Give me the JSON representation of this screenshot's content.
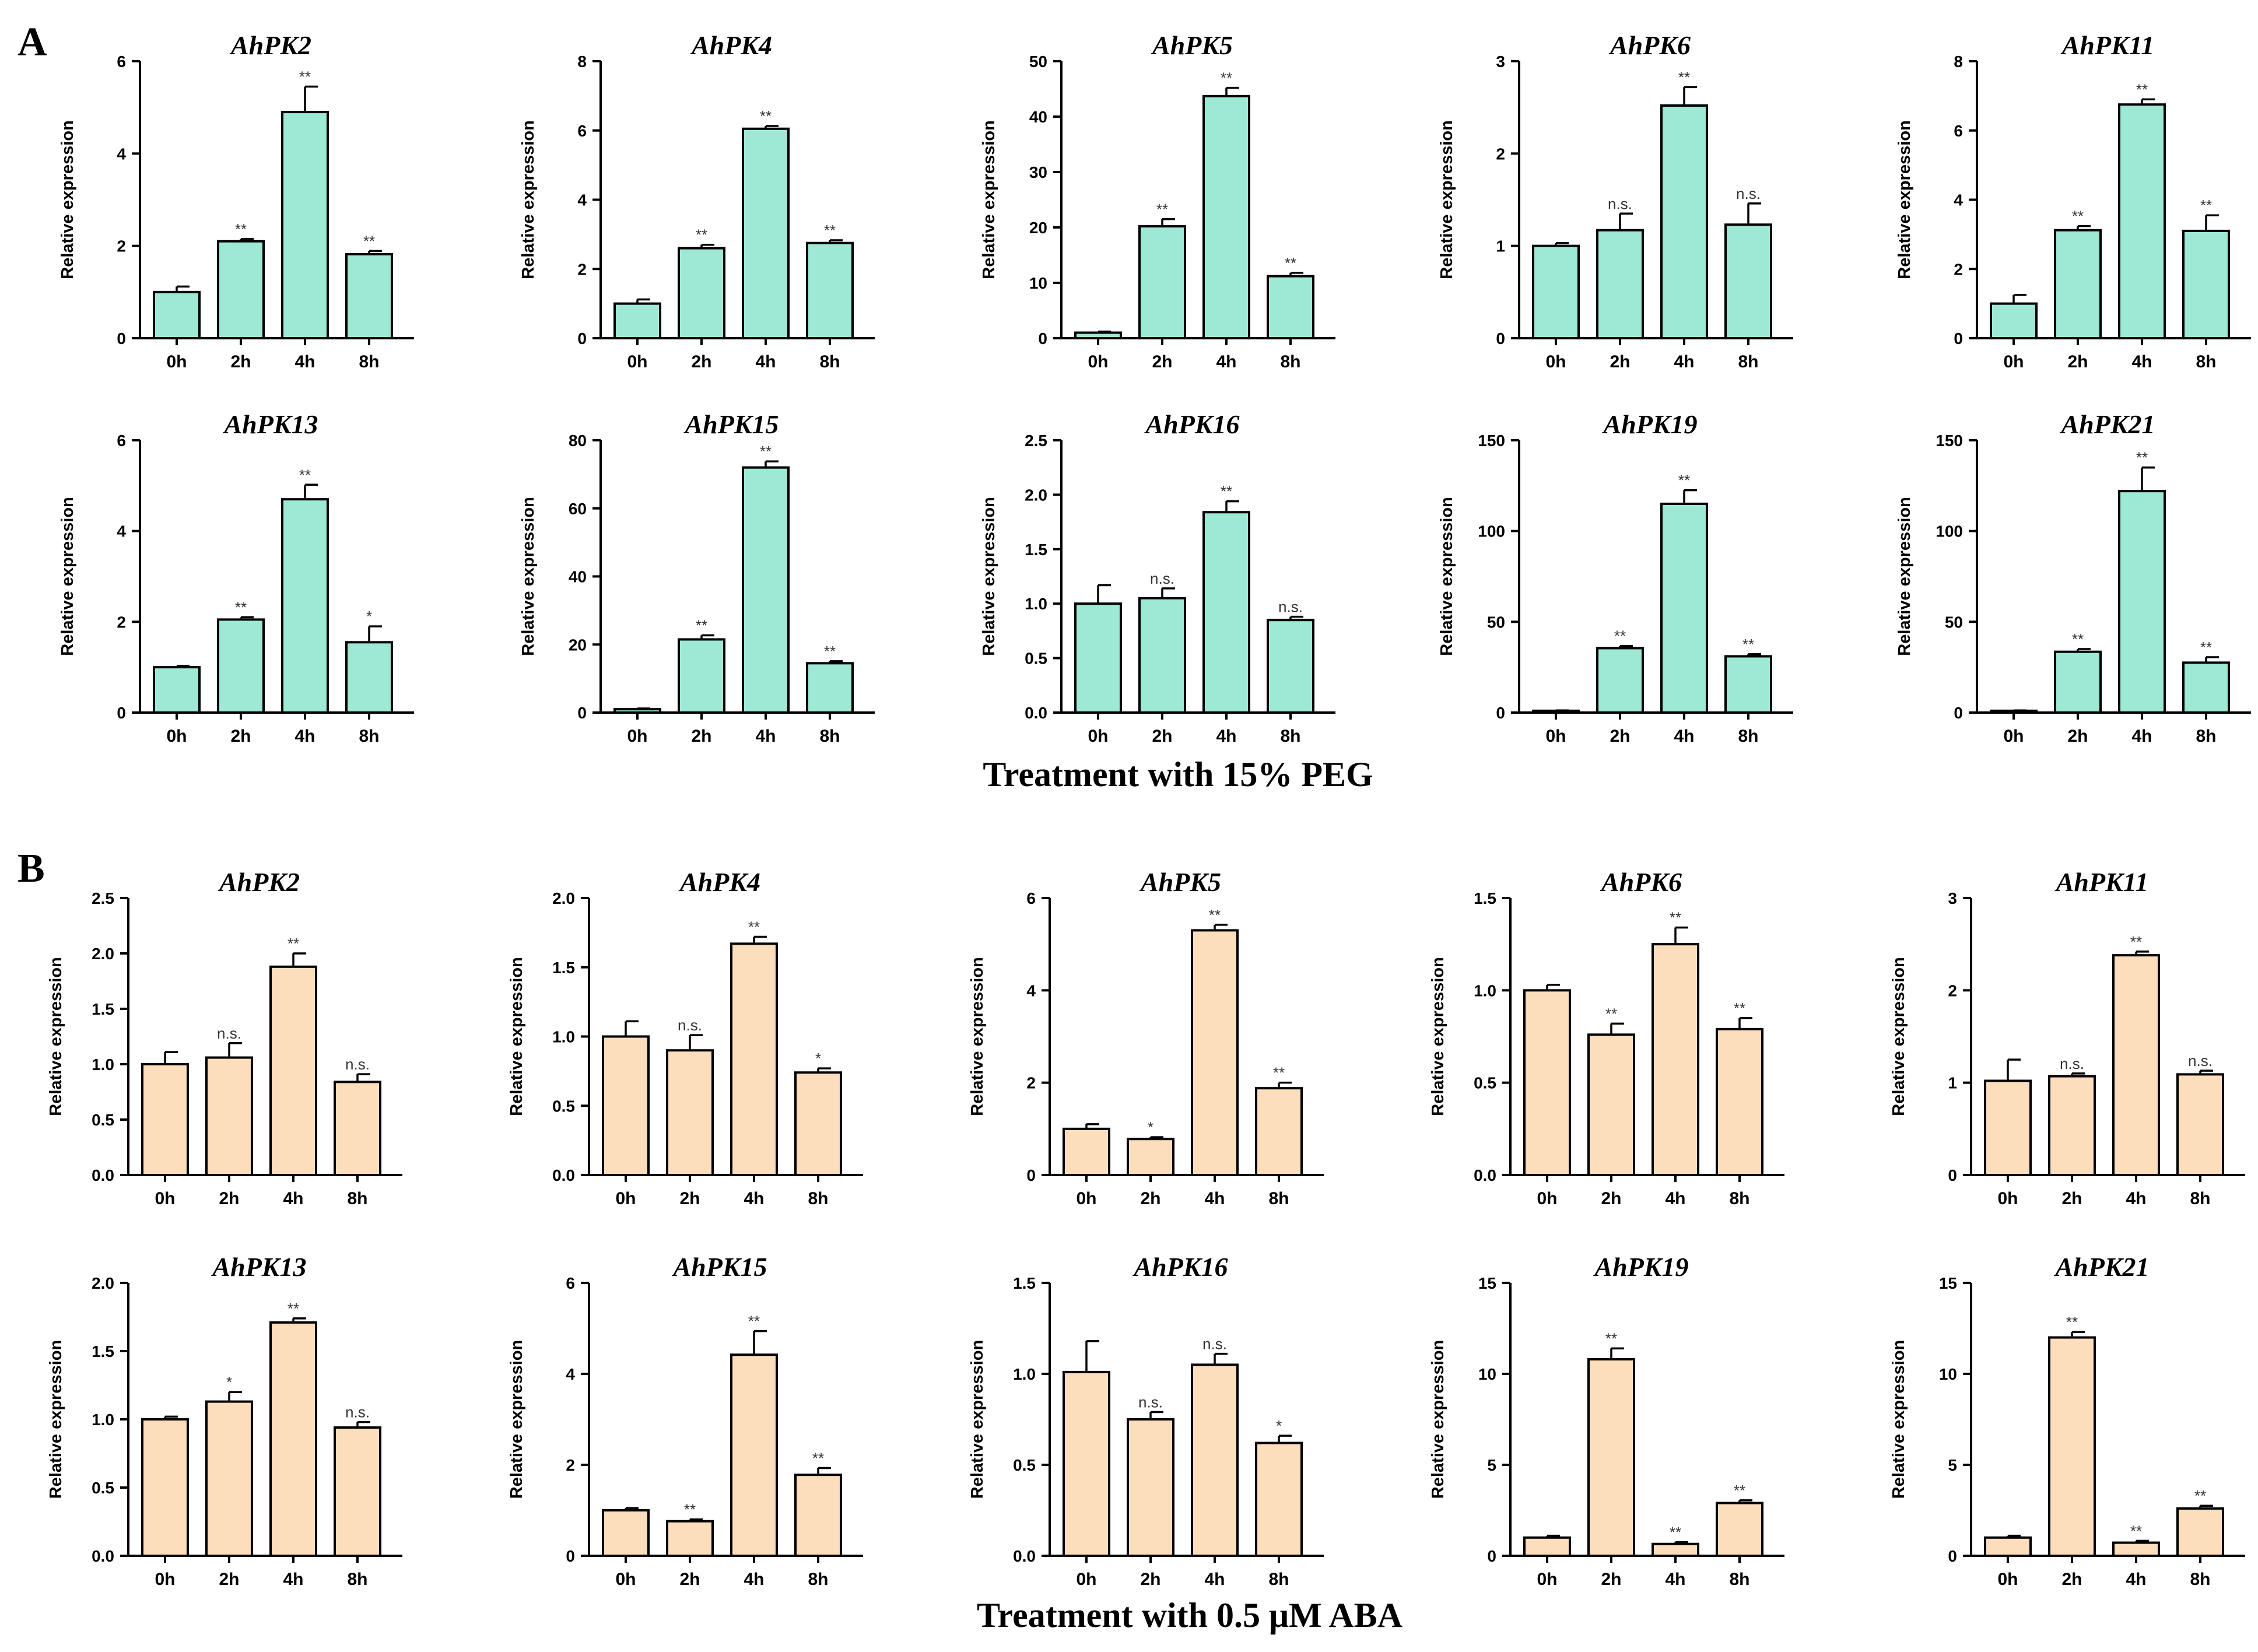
{
  "panels": [
    {
      "letter": "A",
      "treatment": "Treatment with 15% PEG",
      "bar_color": "#9ee8d6"
    },
    {
      "letter": "B",
      "treatment": "Treatment with 0.5 μM ABA",
      "bar_color": "#fcddbc"
    }
  ],
  "chart_data": [
    {
      "type": "bar",
      "panel": "A",
      "title": "AhPK2",
      "ylabel": "Relative expression",
      "categories": [
        "0h",
        "2h",
        "4h",
        "8h"
      ],
      "values": [
        1.0,
        2.1,
        4.9,
        1.82
      ],
      "errors": [
        0.12,
        0.05,
        0.55,
        0.07
      ],
      "significance": [
        "",
        "**",
        "**",
        "**"
      ],
      "ylim": [
        0,
        6
      ],
      "yticks": [
        "0",
        "2",
        "4",
        "6"
      ]
    },
    {
      "type": "bar",
      "panel": "A",
      "title": "AhPK4",
      "ylabel": "Relative expression",
      "categories": [
        "0h",
        "2h",
        "4h",
        "8h"
      ],
      "values": [
        1.0,
        2.6,
        6.05,
        2.75
      ],
      "errors": [
        0.12,
        0.1,
        0.08,
        0.08
      ],
      "significance": [
        "",
        "**",
        "**",
        "**"
      ],
      "ylim": [
        0,
        8
      ],
      "yticks": [
        "0",
        "2",
        "4",
        "6",
        "8"
      ]
    },
    {
      "type": "bar",
      "panel": "A",
      "title": "AhPK5",
      "ylabel": "Relative expression",
      "categories": [
        "0h",
        "2h",
        "4h",
        "8h"
      ],
      "values": [
        1.0,
        20.2,
        43.7,
        11.2
      ],
      "errors": [
        0.2,
        1.3,
        1.5,
        0.6
      ],
      "significance": [
        "",
        "**",
        "**",
        "**"
      ],
      "ylim": [
        0,
        50
      ],
      "yticks": [
        "0",
        "10",
        "20",
        "30",
        "40",
        "50"
      ]
    },
    {
      "type": "bar",
      "panel": "A",
      "title": "AhPK6",
      "ylabel": "Relative expression",
      "categories": [
        "0h",
        "2h",
        "4h",
        "8h"
      ],
      "values": [
        1.0,
        1.17,
        2.52,
        1.23
      ],
      "errors": [
        0.03,
        0.18,
        0.2,
        0.23
      ],
      "significance": [
        "",
        "n.s.",
        "**",
        "n.s."
      ],
      "ylim": [
        0,
        3
      ],
      "yticks": [
        "0",
        "1",
        "2",
        "3"
      ]
    },
    {
      "type": "bar",
      "panel": "A",
      "title": "AhPK11",
      "ylabel": "Relative expression",
      "categories": [
        "0h",
        "2h",
        "4h",
        "8h"
      ],
      "values": [
        1.0,
        3.12,
        6.75,
        3.1
      ],
      "errors": [
        0.25,
        0.12,
        0.15,
        0.45
      ],
      "significance": [
        "",
        "**",
        "**",
        "**"
      ],
      "ylim": [
        0,
        8
      ],
      "yticks": [
        "0",
        "2",
        "4",
        "6",
        "8"
      ]
    },
    {
      "type": "bar",
      "panel": "A",
      "title": "AhPK13",
      "ylabel": "Relative expression",
      "categories": [
        "0h",
        "2h",
        "4h",
        "8h"
      ],
      "values": [
        1.0,
        2.05,
        4.7,
        1.55
      ],
      "errors": [
        0.03,
        0.05,
        0.32,
        0.35
      ],
      "significance": [
        "",
        "**",
        "**",
        "*"
      ],
      "ylim": [
        0,
        6
      ],
      "yticks": [
        "0",
        "2",
        "4",
        "6"
      ]
    },
    {
      "type": "bar",
      "panel": "A",
      "title": "AhPK15",
      "ylabel": "Relative expression",
      "categories": [
        "0h",
        "2h",
        "4h",
        "8h"
      ],
      "values": [
        1.0,
        21.5,
        72.0,
        14.5
      ],
      "errors": [
        0.2,
        1.2,
        1.8,
        0.6
      ],
      "significance": [
        "",
        "**",
        "**",
        "**"
      ],
      "ylim": [
        0,
        80
      ],
      "yticks": [
        "0",
        "20",
        "40",
        "60",
        "80"
      ]
    },
    {
      "type": "bar",
      "panel": "A",
      "title": "AhPK16",
      "ylabel": "Relative expression",
      "categories": [
        "0h",
        "2h",
        "4h",
        "8h"
      ],
      "values": [
        1.0,
        1.05,
        1.84,
        0.85
      ],
      "errors": [
        0.17,
        0.09,
        0.1,
        0.03
      ],
      "significance": [
        "",
        "n.s.",
        "**",
        "n.s."
      ],
      "ylim": [
        0,
        2.5
      ],
      "yticks": [
        "0.0",
        "0.5",
        "1.0",
        "1.5",
        "2.0",
        "2.5"
      ]
    },
    {
      "type": "bar",
      "panel": "A",
      "title": "AhPK19",
      "ylabel": "Relative expression",
      "categories": [
        "0h",
        "2h",
        "4h",
        "8h"
      ],
      "values": [
        1.0,
        35.5,
        115.0,
        31.0
      ],
      "errors": [
        0.2,
        1.2,
        7.5,
        1.2
      ],
      "significance": [
        "",
        "**",
        "**",
        "**"
      ],
      "ylim": [
        0,
        150
      ],
      "yticks": [
        "0",
        "50",
        "100",
        "150"
      ]
    },
    {
      "type": "bar",
      "panel": "A",
      "title": "AhPK21",
      "ylabel": "Relative expression",
      "categories": [
        "0h",
        "2h",
        "4h",
        "8h"
      ],
      "values": [
        1.0,
        33.5,
        122.0,
        27.5
      ],
      "errors": [
        0.2,
        1.5,
        13.0,
        3.0
      ],
      "significance": [
        "",
        "**",
        "**",
        "**"
      ],
      "ylim": [
        0,
        150
      ],
      "yticks": [
        "0",
        "50",
        "100",
        "150"
      ]
    },
    {
      "type": "bar",
      "panel": "B",
      "title": "AhPK2",
      "ylabel": "Relative expression",
      "categories": [
        "0h",
        "2h",
        "4h",
        "8h"
      ],
      "values": [
        1.0,
        1.06,
        1.88,
        0.84
      ],
      "errors": [
        0.11,
        0.13,
        0.12,
        0.07
      ],
      "significance": [
        "",
        "n.s.",
        "**",
        "n.s."
      ],
      "ylim": [
        0,
        2.5
      ],
      "yticks": [
        "0.0",
        "0.5",
        "1.0",
        "1.5",
        "2.0",
        "2.5"
      ]
    },
    {
      "type": "bar",
      "panel": "B",
      "title": "AhPK4",
      "ylabel": "Relative expression",
      "categories": [
        "0h",
        "2h",
        "4h",
        "8h"
      ],
      "values": [
        1.0,
        0.9,
        1.67,
        0.74
      ],
      "errors": [
        0.11,
        0.11,
        0.05,
        0.03
      ],
      "significance": [
        "",
        "n.s.",
        "**",
        "*"
      ],
      "ylim": [
        0,
        2.0
      ],
      "yticks": [
        "0.0",
        "0.5",
        "1.0",
        "1.5",
        "2.0"
      ]
    },
    {
      "type": "bar",
      "panel": "B",
      "title": "AhPK5",
      "ylabel": "Relative expression",
      "categories": [
        "0h",
        "2h",
        "4h",
        "8h"
      ],
      "values": [
        1.0,
        0.78,
        5.3,
        1.88
      ],
      "errors": [
        0.1,
        0.04,
        0.12,
        0.12
      ],
      "significance": [
        "",
        "*",
        "**",
        "**"
      ],
      "ylim": [
        0,
        6
      ],
      "yticks": [
        "0",
        "2",
        "4",
        "6"
      ]
    },
    {
      "type": "bar",
      "panel": "B",
      "title": "AhPK6",
      "ylabel": "Relative expression",
      "categories": [
        "0h",
        "2h",
        "4h",
        "8h"
      ],
      "values": [
        1.0,
        0.76,
        1.25,
        0.79
      ],
      "errors": [
        0.03,
        0.06,
        0.09,
        0.06
      ],
      "significance": [
        "",
        "**",
        "**",
        "**"
      ],
      "ylim": [
        0,
        1.5
      ],
      "yticks": [
        "0.0",
        "0.5",
        "1.0",
        "1.5"
      ]
    },
    {
      "type": "bar",
      "panel": "B",
      "title": "AhPK11",
      "ylabel": "Relative expression",
      "categories": [
        "0h",
        "2h",
        "4h",
        "8h"
      ],
      "values": [
        1.02,
        1.07,
        2.38,
        1.09
      ],
      "errors": [
        0.23,
        0.03,
        0.04,
        0.04
      ],
      "significance": [
        "",
        "n.s.",
        "**",
        "n.s."
      ],
      "ylim": [
        0,
        3
      ],
      "yticks": [
        "0",
        "1",
        "2",
        "3"
      ]
    },
    {
      "type": "bar",
      "panel": "B",
      "title": "AhPK13",
      "ylabel": "Relative expression",
      "categories": [
        "0h",
        "2h",
        "4h",
        "8h"
      ],
      "values": [
        1.0,
        1.13,
        1.71,
        0.94
      ],
      "errors": [
        0.02,
        0.07,
        0.03,
        0.04
      ],
      "significance": [
        "",
        "*",
        "**",
        "n.s."
      ],
      "ylim": [
        0,
        2.0
      ],
      "yticks": [
        "0.0",
        "0.5",
        "1.0",
        "1.5",
        "2.0"
      ]
    },
    {
      "type": "bar",
      "panel": "B",
      "title": "AhPK15",
      "ylabel": "Relative expression",
      "categories": [
        "0h",
        "2h",
        "4h",
        "8h"
      ],
      "values": [
        1.0,
        0.76,
        4.42,
        1.78
      ],
      "errors": [
        0.05,
        0.04,
        0.52,
        0.15
      ],
      "significance": [
        "",
        "**",
        "**",
        "**"
      ],
      "ylim": [
        0,
        6
      ],
      "yticks": [
        "0",
        "2",
        "4",
        "6"
      ]
    },
    {
      "type": "bar",
      "panel": "B",
      "title": "AhPK16",
      "ylabel": "Relative expression",
      "categories": [
        "0h",
        "2h",
        "4h",
        "8h"
      ],
      "values": [
        1.01,
        0.75,
        1.05,
        0.62
      ],
      "errors": [
        0.17,
        0.04,
        0.06,
        0.04
      ],
      "significance": [
        "",
        "n.s.",
        "n.s.",
        "*"
      ],
      "ylim": [
        0,
        1.5
      ],
      "yticks": [
        "0.0",
        "0.5",
        "1.0",
        "1.5"
      ]
    },
    {
      "type": "bar",
      "panel": "B",
      "title": "AhPK19",
      "ylabel": "Relative expression",
      "categories": [
        "0h",
        "2h",
        "4h",
        "8h"
      ],
      "values": [
        1.0,
        10.8,
        0.65,
        2.9
      ],
      "errors": [
        0.1,
        0.6,
        0.1,
        0.15
      ],
      "significance": [
        "",
        "**",
        "**",
        "**"
      ],
      "ylim": [
        0,
        15
      ],
      "yticks": [
        "0",
        "5",
        "10",
        "15"
      ]
    },
    {
      "type": "bar",
      "panel": "B",
      "title": "AhPK21",
      "ylabel": "Relative expression",
      "categories": [
        "0h",
        "2h",
        "4h",
        "8h"
      ],
      "values": [
        1.0,
        12.0,
        0.72,
        2.6
      ],
      "errors": [
        0.1,
        0.3,
        0.1,
        0.15
      ],
      "significance": [
        "",
        "**",
        "**",
        "**"
      ],
      "ylim": [
        0,
        15
      ],
      "yticks": [
        "0",
        "5",
        "10",
        "15"
      ]
    }
  ]
}
